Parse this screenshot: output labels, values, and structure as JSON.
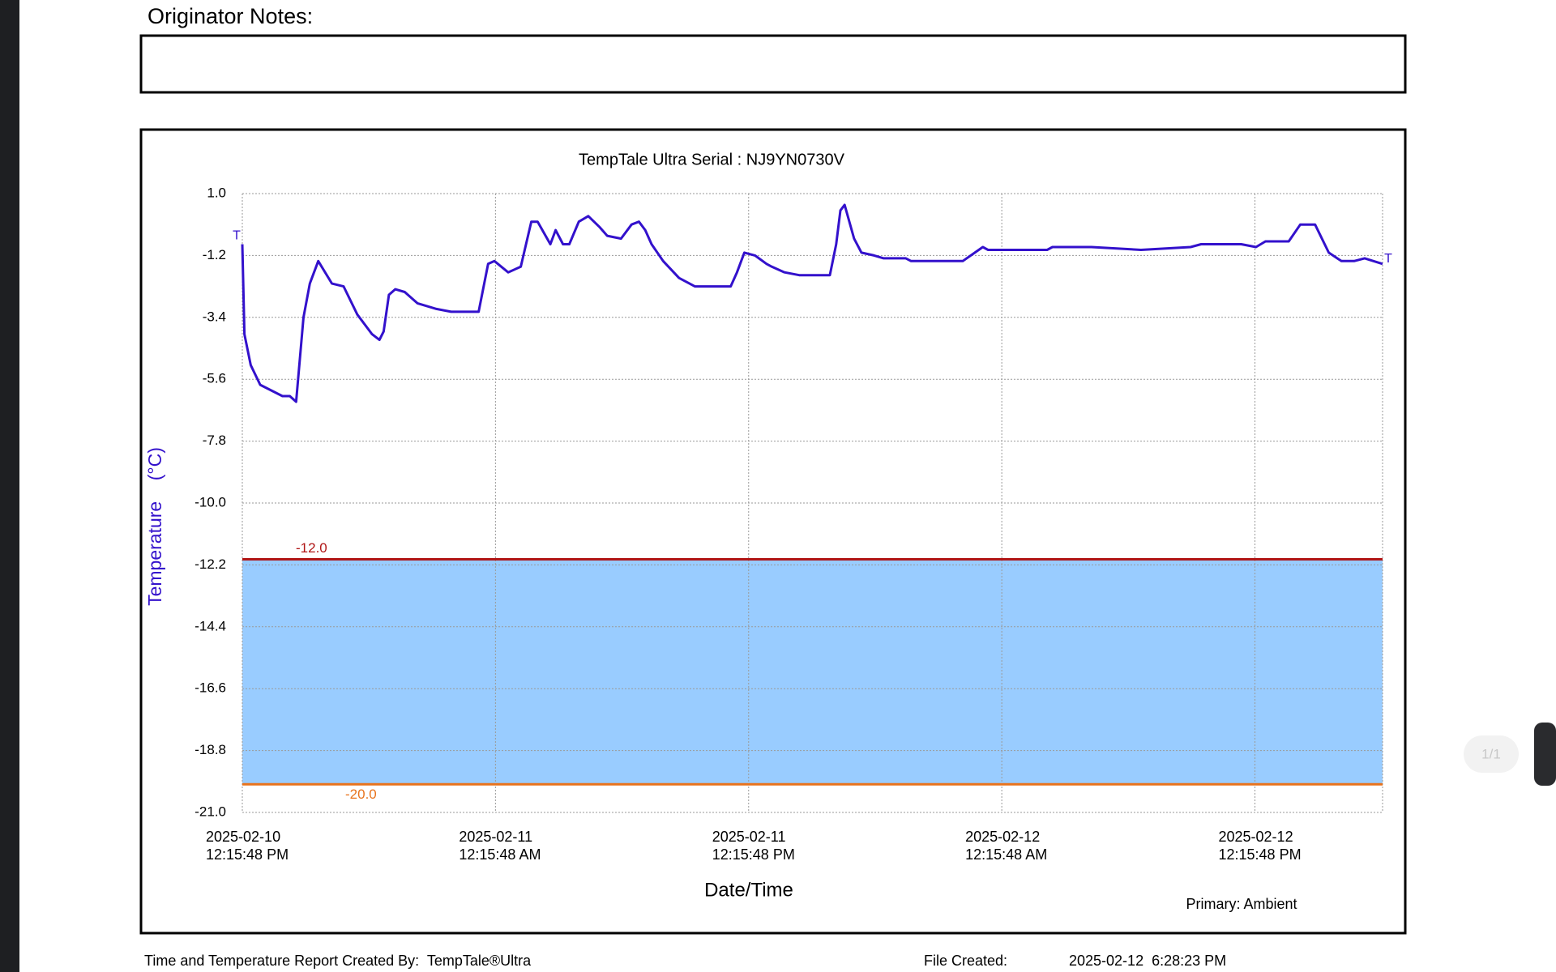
{
  "notes": {
    "label": "Originator Notes:"
  },
  "chart_data": {
    "type": "line",
    "title": "TempTale Ultra  Serial : NJ9YN0730V",
    "ylabel": "Temperature    (°C)",
    "xlabel": "Date/Time",
    "end_marker": "T",
    "grid": true,
    "band_color": "#99ccff",
    "thresholds": [
      {
        "value": -12,
        "label": "-12.0",
        "color": "#b01515"
      },
      {
        "value": -20,
        "label": "-20.0",
        "color": "#e8731c"
      }
    ],
    "ylim": [
      -21,
      1
    ],
    "yticks": [
      {
        "value": 1,
        "label": "1.0"
      },
      -1.2,
      -3.4,
      -5.6,
      -7.8,
      {
        "value": -10,
        "label": "-10.0"
      },
      -12.2,
      -14.4,
      -16.6,
      -18.8,
      {
        "value": -21,
        "label": "-21.0"
      }
    ],
    "xlim": [
      "2025-02-10T12:15:48",
      "2025-02-12T18:18:48"
    ],
    "xticks": [
      {
        "value": "2025-02-10T12:15:48",
        "label": "2025-02-10\n12:15:48 PM"
      },
      {
        "value": "2025-02-11T00:15:48",
        "label": "2025-02-11\n12:15:48 AM"
      },
      {
        "value": "2025-02-11T12:15:48",
        "label": "2025-02-11\n12:15:48 PM"
      },
      {
        "value": "2025-02-12T00:15:48",
        "label": "2025-02-12\n12:15:48 AM"
      },
      {
        "value": "2025-02-12T12:15:48",
        "label": "2025-02-12\n12:15:48 PM"
      }
    ],
    "series": [
      {
        "name": "Primary: Ambient",
        "color": "#3311cc",
        "x": [
          "2025-02-10T12:15:48",
          "2025-02-10T12:21:48",
          "2025-02-10T12:39:48",
          "2025-02-10T13:06:48",
          "2025-02-10T14:09:48",
          "2025-02-10T14:30:48",
          "2025-02-10T14:48:48",
          "2025-02-10T15:09:48",
          "2025-02-10T15:27:48",
          "2025-02-10T15:51:48",
          "2025-02-10T16:30:48",
          "2025-02-10T17:03:48",
          "2025-02-10T17:42:48",
          "2025-02-10T18:24:48",
          "2025-02-10T18:45:48",
          "2025-02-10T18:57:48",
          "2025-02-10T19:12:48",
          "2025-02-10T19:30:48",
          "2025-02-10T19:57:48",
          "2025-02-10T20:33:48",
          "2025-02-10T21:27:48",
          "2025-02-10T22:09:48",
          "2025-02-10T23:27:48",
          "2025-02-10T23:54:48",
          "2025-02-11T00:12:48",
          "2025-02-11T00:51:48",
          "2025-02-11T01:27:48",
          "2025-02-11T01:57:48",
          "2025-02-11T02:15:48",
          "2025-02-11T02:51:48",
          "2025-02-11T03:06:48",
          "2025-02-11T03:27:48",
          "2025-02-11T03:45:48",
          "2025-02-11T04:12:48",
          "2025-02-11T04:39:48",
          "2025-02-11T05:12:48",
          "2025-02-11T05:33:48",
          "2025-02-11T06:12:48",
          "2025-02-11T06:42:48",
          "2025-02-11T07:03:48",
          "2025-02-11T07:21:48",
          "2025-02-11T07:39:48",
          "2025-02-11T08:12:48",
          "2025-02-11T08:57:48",
          "2025-02-11T09:42:48",
          "2025-02-11T10:15:48",
          "2025-02-11T11:24:48",
          "2025-02-11T11:42:48",
          "2025-02-11T12:03:48",
          "2025-02-11T12:33:48",
          "2025-02-11T13:06:48",
          "2025-02-11T13:21:48",
          "2025-02-11T13:57:48",
          "2025-02-11T14:39:48",
          "2025-02-11T16:06:48",
          "2025-02-11T16:24:48",
          "2025-02-11T16:36:48",
          "2025-02-11T16:48:48",
          "2025-02-11T17:15:48",
          "2025-02-11T17:36:48",
          "2025-02-11T18:12:48",
          "2025-02-11T18:39:48",
          "2025-02-11T19:42:48",
          "2025-02-11T19:57:48",
          "2025-02-11T22:24:48",
          "2025-02-11T23:21:48",
          "2025-02-11T23:36:48",
          "2025-02-12T02:24:48",
          "2025-02-12T02:39:48",
          "2025-02-12T03:06:48",
          "2025-02-12T04:30:48",
          "2025-02-12T06:51:48",
          "2025-02-12T09:12:48",
          "2025-02-12T09:42:48",
          "2025-02-12T11:36:48",
          "2025-02-12T12:18:48",
          "2025-02-12T12:45:48",
          "2025-02-12T13:51:48",
          "2025-02-12T14:24:48",
          "2025-02-12T15:06:48",
          "2025-02-12T15:45:48",
          "2025-02-12T16:21:48",
          "2025-02-12T16:57:48",
          "2025-02-12T17:27:48",
          "2025-02-12T18:18:48"
        ],
        "values": [
          -0.8,
          -4.0,
          -5.1,
          -5.8,
          -6.2,
          -6.2,
          -6.4,
          -3.4,
          -2.2,
          -1.4,
          -2.2,
          -2.3,
          -3.3,
          -4.0,
          -4.2,
          -3.9,
          -2.6,
          -2.4,
          -2.5,
          -2.9,
          -3.1,
          -3.2,
          -3.2,
          -1.5,
          -1.4,
          -1.8,
          -1.6,
          0.0,
          0.0,
          -0.8,
          -0.3,
          -0.8,
          -0.8,
          0.0,
          0.2,
          -0.2,
          -0.5,
          -0.6,
          -0.1,
          0.0,
          -0.3,
          -0.8,
          -1.4,
          -2.0,
          -2.3,
          -2.3,
          -2.3,
          -1.8,
          -1.1,
          -1.2,
          -1.5,
          -1.6,
          -1.8,
          -1.9,
          -1.9,
          -0.8,
          0.4,
          0.6,
          -0.6,
          -1.1,
          -1.2,
          -1.3,
          -1.3,
          -1.4,
          -1.4,
          -0.9,
          -1.0,
          -1.0,
          -0.9,
          -0.9,
          -0.9,
          -1.0,
          -0.9,
          -0.8,
          -0.8,
          -0.9,
          -0.7,
          -0.7,
          -0.1,
          -0.1,
          -1.1,
          -1.4,
          -1.4,
          -1.3,
          -1.5
        ]
      }
    ]
  },
  "footer": {
    "created_by": "Time and Temperature Report Created By:  TempTale®Ultra",
    "file_created_label": "File Created:",
    "file_created": "2025-02-12  6:28:23 PM"
  },
  "viewer": {
    "page": "1/1"
  }
}
